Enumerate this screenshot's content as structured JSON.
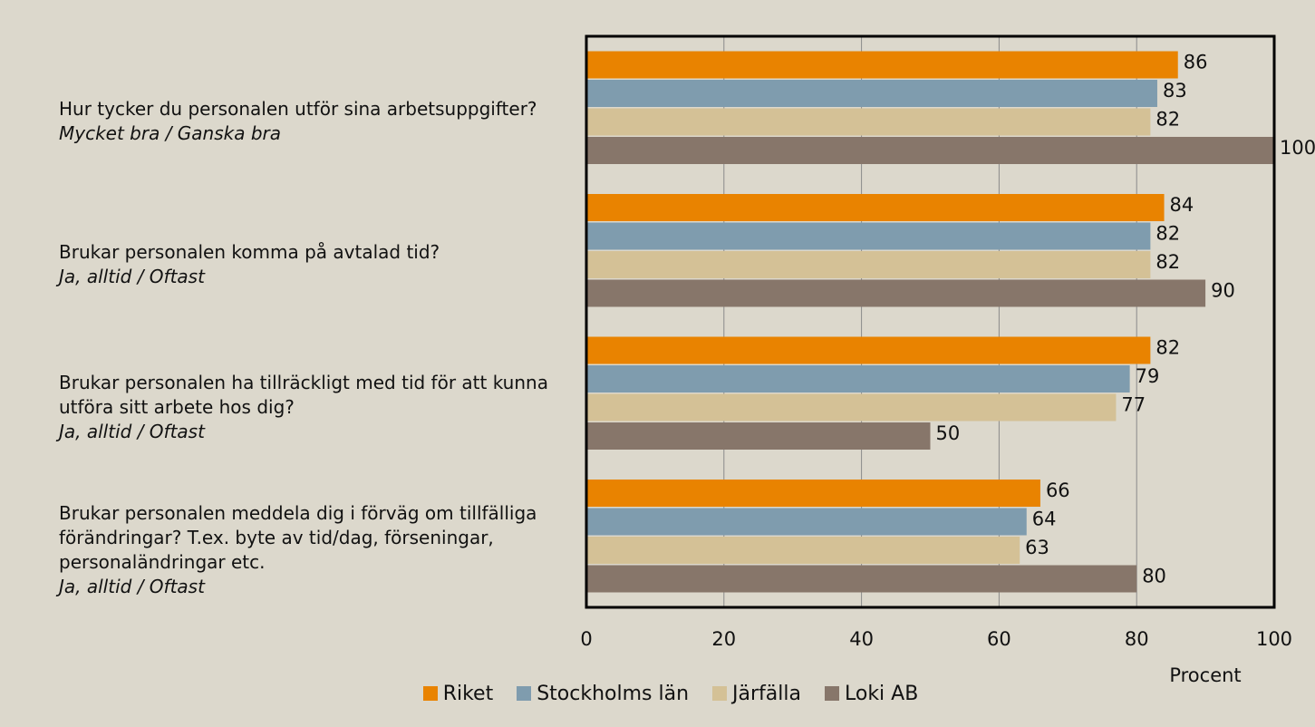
{
  "chart_data": {
    "type": "barh",
    "categories": [
      "Hur tycker du personalen utför sina arbetsuppgifter?",
      "Brukar personalen komma på avtalad tid?",
      "Brukar personalen ha tillräckligt med tid för att kunna utföra sitt arbete hos dig?",
      "Brukar personalen meddela dig i förväg om tillfälliga förändringar? T.ex. byte av tid/dag, förseningar, personaländringar etc."
    ],
    "category_notes": [
      "Mycket bra / Ganska bra",
      "Ja, alltid / Oftast",
      "Ja, alltid / Oftast",
      "Ja, alltid / Oftast"
    ],
    "series": [
      {
        "name": "Riket",
        "color": "#e98300",
        "values": [
          86,
          84,
          82,
          66
        ]
      },
      {
        "name": "Stockholms län",
        "color": "#7f9cae",
        "values": [
          83,
          82,
          79,
          64
        ]
      },
      {
        "name": "Järfälla",
        "color": "#d4c196",
        "values": [
          82,
          82,
          77,
          63
        ]
      },
      {
        "name": "Loki AB",
        "color": "#87766a",
        "values": [
          100,
          90,
          50,
          80
        ]
      }
    ],
    "xlabel": "Procent",
    "xlim": [
      0,
      100
    ],
    "xticks": [
      0,
      20,
      40,
      60,
      80,
      100
    ],
    "grid": true,
    "legend": "bottom"
  }
}
